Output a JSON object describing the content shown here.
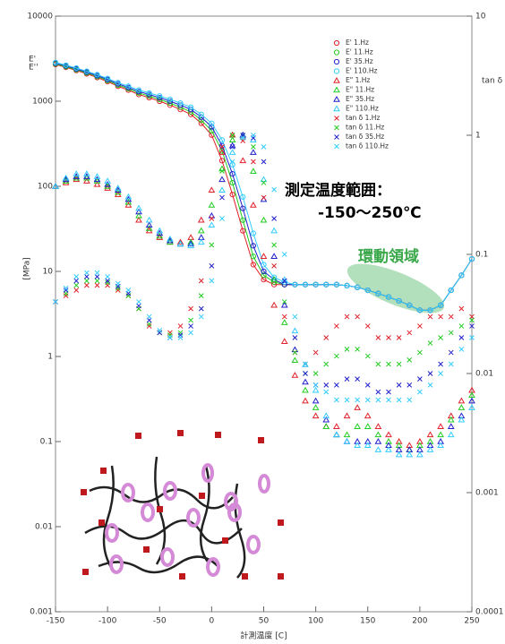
{
  "chart_data": {
    "type": "scatter",
    "log_y": true,
    "log_y2": true,
    "xlabel": "計測温度 [C]",
    "ylabel": "[MPa]",
    "ylabel_symbols": [
      "E'",
      "E''"
    ],
    "y2label": "tan δ",
    "annotations": [
      "測定温度範囲：",
      "-150～250℃",
      "環動領域"
    ],
    "xlim": [
      -150,
      250
    ],
    "xticks": [
      -150,
      -100,
      -50,
      0,
      50,
      100,
      150,
      200,
      250
    ],
    "ylim": [
      0.001,
      10000
    ],
    "yticks": [
      0.001,
      0.01,
      0.1,
      1,
      10,
      100,
      1000,
      10000
    ],
    "y2lim": [
      0.0001,
      10
    ],
    "y2ticks": [
      0.0001,
      0.001,
      0.01,
      0.1,
      1,
      10
    ],
    "x": [
      -150,
      -140,
      -130,
      -120,
      -110,
      -100,
      -90,
      -80,
      -70,
      -60,
      -50,
      -40,
      -30,
      -20,
      -10,
      0,
      10,
      20,
      30,
      40,
      50,
      60,
      70,
      80,
      90,
      100,
      110,
      120,
      130,
      140,
      150,
      160,
      170,
      180,
      190,
      200,
      210,
      220,
      230,
      240,
      250
    ],
    "series": [
      {
        "name": "E' 1.Hz",
        "color": "#e0202a",
        "marker": "circle",
        "values": [
          2700,
          2500,
          2300,
          2100,
          1900,
          1700,
          1500,
          1350,
          1200,
          1100,
          1000,
          900,
          800,
          700,
          550,
          400,
          200,
          80,
          30,
          12,
          8,
          7,
          7,
          7,
          7,
          7,
          7,
          7,
          6.8,
          6.5,
          6,
          5.5,
          5,
          4.5,
          4,
          3.5,
          3.5,
          4,
          6,
          9,
          14
        ]
      },
      {
        "name": "E' 11.Hz",
        "color": "#22cc22",
        "marker": "circle",
        "values": [
          2750,
          2550,
          2350,
          2150,
          1950,
          1750,
          1550,
          1400,
          1250,
          1150,
          1050,
          950,
          850,
          750,
          600,
          450,
          260,
          110,
          40,
          15,
          9,
          7.5,
          7,
          7,
          7,
          7,
          7,
          7,
          6.8,
          6.5,
          6,
          5.5,
          5,
          4.5,
          4,
          3.5,
          3.5,
          4,
          6,
          9,
          14
        ]
      },
      {
        "name": "E' 35.Hz",
        "color": "#2020cc",
        "marker": "circle",
        "values": [
          2800,
          2600,
          2400,
          2200,
          2000,
          1800,
          1600,
          1450,
          1300,
          1200,
          1100,
          1000,
          900,
          800,
          650,
          500,
          300,
          140,
          55,
          20,
          10,
          8,
          7,
          7,
          7,
          7,
          7,
          7,
          6.8,
          6.5,
          6,
          5.5,
          5,
          4.5,
          4,
          3.5,
          3.5,
          4,
          6,
          9,
          14
        ]
      },
      {
        "name": "E' 110.Hz",
        "color": "#33ccff",
        "marker": "circle",
        "values": [
          2850,
          2650,
          2450,
          2250,
          2050,
          1850,
          1650,
          1500,
          1350,
          1250,
          1150,
          1050,
          950,
          850,
          700,
          550,
          350,
          180,
          75,
          28,
          12,
          8.5,
          7.5,
          7,
          7,
          7,
          7,
          7,
          6.8,
          6.5,
          6,
          5.5,
          5,
          4.5,
          4,
          3.5,
          3.5,
          4,
          6,
          9,
          14
        ]
      },
      {
        "name": "E\" 1.Hz",
        "color": "#e0202a",
        "marker": "triangle",
        "values": [
          100,
          110,
          120,
          115,
          105,
          95,
          80,
          60,
          40,
          30,
          25,
          22,
          22,
          25,
          40,
          90,
          250,
          400,
          200,
          60,
          15,
          4,
          1.5,
          0.6,
          0.3,
          0.2,
          0.15,
          0.15,
          0.2,
          0.25,
          0.2,
          0.15,
          0.12,
          0.1,
          0.09,
          0.1,
          0.12,
          0.15,
          0.2,
          0.3,
          0.4
        ]
      },
      {
        "name": "E\" 11.Hz",
        "color": "#22cc22",
        "marker": "triangle",
        "values": [
          100,
          115,
          125,
          125,
          115,
          100,
          85,
          65,
          45,
          32,
          26,
          22,
          21,
          22,
          30,
          60,
          160,
          350,
          380,
          150,
          40,
          8,
          2.5,
          0.9,
          0.4,
          0.25,
          0.15,
          0.12,
          0.12,
          0.15,
          0.15,
          0.12,
          0.1,
          0.09,
          0.08,
          0.09,
          0.1,
          0.12,
          0.18,
          0.25,
          0.35
        ]
      },
      {
        "name": "E\" 35.Hz",
        "color": "#2020cc",
        "marker": "triangle",
        "values": [
          100,
          120,
          130,
          130,
          120,
          105,
          90,
          70,
          50,
          35,
          28,
          23,
          21,
          21,
          25,
          45,
          120,
          300,
          400,
          250,
          70,
          15,
          4,
          1.2,
          0.5,
          0.3,
          0.18,
          0.12,
          0.1,
          0.1,
          0.1,
          0.1,
          0.09,
          0.08,
          0.08,
          0.08,
          0.09,
          0.1,
          0.15,
          0.2,
          0.3
        ]
      },
      {
        "name": "E\" 110.Hz",
        "color": "#33ccff",
        "marker": "triangle",
        "values": [
          100,
          125,
          140,
          140,
          130,
          115,
          95,
          75,
          55,
          40,
          30,
          24,
          21,
          20,
          22,
          35,
          90,
          250,
          380,
          350,
          120,
          30,
          8,
          2,
          0.8,
          0.4,
          0.2,
          0.12,
          0.1,
          0.09,
          0.09,
          0.08,
          0.08,
          0.07,
          0.07,
          0.07,
          0.08,
          0.09,
          0.12,
          0.18,
          0.25
        ]
      },
      {
        "name": "tan δ 1.Hz",
        "color": "#e0202a",
        "marker": "cross",
        "axis": "y2",
        "values": [
          0.04,
          0.045,
          0.05,
          0.055,
          0.055,
          0.055,
          0.05,
          0.045,
          0.035,
          0.025,
          0.022,
          0.022,
          0.025,
          0.035,
          0.06,
          0.2,
          0.8,
          1.0,
          0.9,
          0.6,
          0.3,
          0.08,
          0.03,
          0.015,
          0.012,
          0.015,
          0.02,
          0.025,
          0.03,
          0.03,
          0.025,
          0.02,
          0.02,
          0.02,
          0.022,
          0.025,
          0.03,
          0.03,
          0.03,
          0.035,
          0.03
        ]
      },
      {
        "name": "tan δ 11.Hz",
        "color": "#22cc22",
        "marker": "cross",
        "axis": "y2",
        "values": [
          0.04,
          0.047,
          0.055,
          0.06,
          0.06,
          0.058,
          0.052,
          0.045,
          0.035,
          0.026,
          0.022,
          0.021,
          0.022,
          0.028,
          0.045,
          0.12,
          0.5,
          1.0,
          1.0,
          0.8,
          0.4,
          0.12,
          0.04,
          0.015,
          0.01,
          0.01,
          0.012,
          0.014,
          0.016,
          0.016,
          0.014,
          0.012,
          0.012,
          0.012,
          0.013,
          0.015,
          0.018,
          0.02,
          0.022,
          0.025,
          0.028
        ]
      },
      {
        "name": "tan δ 35.Hz",
        "color": "#2020cc",
        "marker": "cross",
        "axis": "y2",
        "values": [
          0.04,
          0.05,
          0.06,
          0.065,
          0.065,
          0.06,
          0.054,
          0.047,
          0.037,
          0.028,
          0.022,
          0.02,
          0.021,
          0.025,
          0.035,
          0.08,
          0.3,
          0.8,
          1.0,
          0.95,
          0.6,
          0.2,
          0.06,
          0.02,
          0.01,
          0.008,
          0.008,
          0.008,
          0.009,
          0.009,
          0.008,
          0.007,
          0.007,
          0.008,
          0.008,
          0.009,
          0.01,
          0.012,
          0.015,
          0.02,
          0.025
        ]
      },
      {
        "name": "tan δ 110.Hz",
        "color": "#33ccff",
        "marker": "cross",
        "axis": "y2",
        "values": [
          0.04,
          0.052,
          0.065,
          0.07,
          0.07,
          0.065,
          0.057,
          0.05,
          0.04,
          0.03,
          0.023,
          0.02,
          0.02,
          0.022,
          0.03,
          0.06,
          0.2,
          0.6,
          0.95,
          1.0,
          0.8,
          0.35,
          0.1,
          0.03,
          0.012,
          0.008,
          0.007,
          0.006,
          0.006,
          0.006,
          0.006,
          0.006,
          0.006,
          0.006,
          0.006,
          0.007,
          0.008,
          0.01,
          0.012,
          0.016,
          0.02
        ]
      }
    ]
  }
}
